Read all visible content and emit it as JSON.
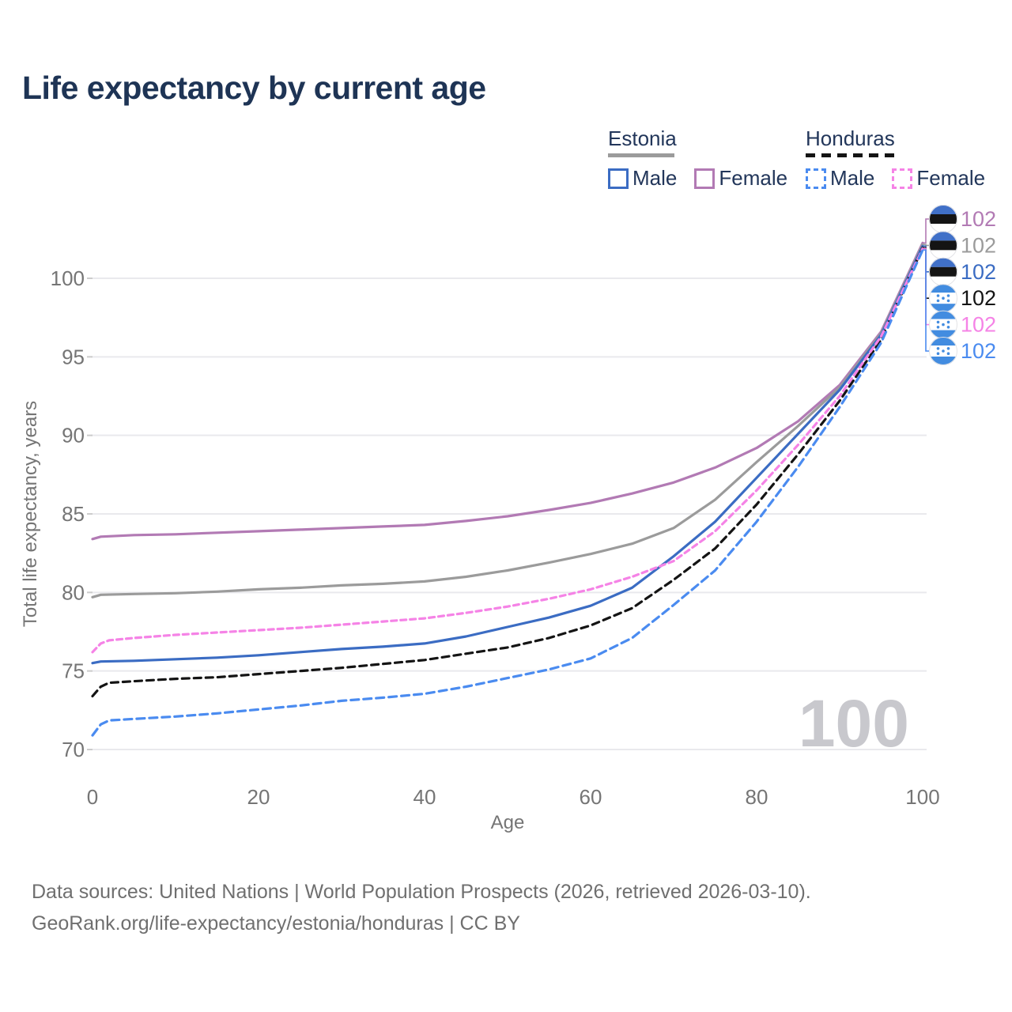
{
  "title": "Life expectancy by current age",
  "legend": {
    "groups": [
      {
        "name": "Estonia",
        "line_style": "solid",
        "underline_color": "#9b9b9b",
        "items": [
          {
            "label": "Male",
            "color": "#3b6cc3"
          },
          {
            "label": "Female",
            "color": "#b27ab4"
          }
        ]
      },
      {
        "name": "Honduras",
        "line_style": "dashed",
        "underline_color": "#141414",
        "items": [
          {
            "label": "Male",
            "color": "#4a8bf0"
          },
          {
            "label": "Female",
            "color": "#f583e6"
          }
        ]
      }
    ]
  },
  "chart_data": {
    "type": "line",
    "xlabel": "Age",
    "ylabel": "Total life expectancy, years",
    "xlim": [
      0,
      100
    ],
    "ylim": [
      69.5,
      103
    ],
    "xticks": [
      0,
      20,
      40,
      60,
      80,
      100
    ],
    "yticks": [
      70,
      75,
      80,
      85,
      90,
      95,
      100
    ],
    "grid": "horizontal",
    "hover_age_watermark": "100",
    "series": [
      {
        "name": "Estonia Female",
        "country": "Estonia",
        "sex": "Female",
        "color": "#b27ab4",
        "dash": null,
        "end_label": "102",
        "label_row": 0,
        "points": [
          [
            0,
            83.4
          ],
          [
            1,
            83.55
          ],
          [
            5,
            83.65
          ],
          [
            10,
            83.7
          ],
          [
            15,
            83.8
          ],
          [
            20,
            83.9
          ],
          [
            25,
            84.0
          ],
          [
            30,
            84.1
          ],
          [
            35,
            84.2
          ],
          [
            40,
            84.3
          ],
          [
            45,
            84.55
          ],
          [
            50,
            84.85
          ],
          [
            55,
            85.25
          ],
          [
            60,
            85.7
          ],
          [
            65,
            86.3
          ],
          [
            70,
            87.0
          ],
          [
            75,
            87.95
          ],
          [
            80,
            89.2
          ],
          [
            85,
            90.9
          ],
          [
            90,
            93.2
          ],
          [
            95,
            96.6
          ],
          [
            100,
            102.25
          ]
        ]
      },
      {
        "name": "Estonia (both sexes)",
        "country": "Estonia",
        "sex": "Total",
        "color": "#9b9b9b",
        "dash": null,
        "end_label": "102",
        "label_row": 1,
        "points": [
          [
            0,
            79.7
          ],
          [
            1,
            79.85
          ],
          [
            5,
            79.9
          ],
          [
            10,
            79.95
          ],
          [
            15,
            80.05
          ],
          [
            20,
            80.2
          ],
          [
            25,
            80.3
          ],
          [
            30,
            80.45
          ],
          [
            35,
            80.55
          ],
          [
            40,
            80.7
          ],
          [
            45,
            81.0
          ],
          [
            50,
            81.4
          ],
          [
            55,
            81.9
          ],
          [
            60,
            82.45
          ],
          [
            65,
            83.1
          ],
          [
            70,
            84.1
          ],
          [
            75,
            85.9
          ],
          [
            80,
            88.3
          ],
          [
            85,
            90.6
          ],
          [
            90,
            93.05
          ],
          [
            95,
            96.5
          ],
          [
            100,
            102.15
          ]
        ]
      },
      {
        "name": "Estonia Male",
        "country": "Estonia",
        "sex": "Male",
        "color": "#3b6cc3",
        "dash": null,
        "end_label": "102",
        "label_row": 2,
        "points": [
          [
            0,
            75.5
          ],
          [
            1,
            75.6
          ],
          [
            5,
            75.65
          ],
          [
            10,
            75.75
          ],
          [
            15,
            75.85
          ],
          [
            20,
            76.0
          ],
          [
            25,
            76.2
          ],
          [
            30,
            76.4
          ],
          [
            35,
            76.55
          ],
          [
            40,
            76.75
          ],
          [
            45,
            77.2
          ],
          [
            50,
            77.8
          ],
          [
            55,
            78.4
          ],
          [
            60,
            79.15
          ],
          [
            65,
            80.3
          ],
          [
            70,
            82.3
          ],
          [
            75,
            84.5
          ],
          [
            80,
            87.3
          ],
          [
            85,
            90.1
          ],
          [
            90,
            92.9
          ],
          [
            95,
            96.4
          ],
          [
            100,
            102.05
          ]
        ]
      },
      {
        "name": "Honduras (both sexes)",
        "country": "Honduras",
        "sex": "Total",
        "color": "#141414",
        "dash": "9 6",
        "end_label": "102",
        "label_row": 3,
        "points": [
          [
            0,
            73.4
          ],
          [
            1,
            74.0
          ],
          [
            2,
            74.25
          ],
          [
            5,
            74.35
          ],
          [
            10,
            74.5
          ],
          [
            15,
            74.6
          ],
          [
            20,
            74.8
          ],
          [
            25,
            75.0
          ],
          [
            30,
            75.2
          ],
          [
            35,
            75.45
          ],
          [
            40,
            75.7
          ],
          [
            45,
            76.1
          ],
          [
            50,
            76.5
          ],
          [
            55,
            77.1
          ],
          [
            60,
            77.9
          ],
          [
            65,
            79.0
          ],
          [
            70,
            80.8
          ],
          [
            75,
            82.8
          ],
          [
            80,
            85.6
          ],
          [
            85,
            88.8
          ],
          [
            90,
            92.2
          ],
          [
            95,
            96.1
          ],
          [
            100,
            101.95
          ]
        ]
      },
      {
        "name": "Honduras Female",
        "country": "Honduras",
        "sex": "Female",
        "color": "#f583e6",
        "dash": "7 5",
        "end_label": "102",
        "label_row": 4,
        "points": [
          [
            0,
            76.2
          ],
          [
            1,
            76.75
          ],
          [
            2,
            76.95
          ],
          [
            5,
            77.1
          ],
          [
            10,
            77.3
          ],
          [
            15,
            77.45
          ],
          [
            20,
            77.6
          ],
          [
            25,
            77.75
          ],
          [
            30,
            77.95
          ],
          [
            35,
            78.15
          ],
          [
            40,
            78.35
          ],
          [
            45,
            78.7
          ],
          [
            50,
            79.1
          ],
          [
            55,
            79.6
          ],
          [
            60,
            80.2
          ],
          [
            65,
            81.0
          ],
          [
            70,
            82.0
          ],
          [
            75,
            83.9
          ],
          [
            80,
            86.5
          ],
          [
            85,
            89.4
          ],
          [
            90,
            92.5
          ],
          [
            95,
            96.3
          ],
          [
            100,
            101.9
          ]
        ]
      },
      {
        "name": "Honduras Male",
        "country": "Honduras",
        "sex": "Male",
        "color": "#4a8bf0",
        "dash": "10 6",
        "end_label": "102",
        "label_row": 5,
        "points": [
          [
            0,
            70.9
          ],
          [
            1,
            71.6
          ],
          [
            2,
            71.85
          ],
          [
            5,
            71.95
          ],
          [
            10,
            72.1
          ],
          [
            15,
            72.3
          ],
          [
            20,
            72.55
          ],
          [
            25,
            72.8
          ],
          [
            30,
            73.1
          ],
          [
            35,
            73.3
          ],
          [
            40,
            73.55
          ],
          [
            45,
            74.0
          ],
          [
            50,
            74.55
          ],
          [
            55,
            75.1
          ],
          [
            60,
            75.8
          ],
          [
            65,
            77.1
          ],
          [
            70,
            79.2
          ],
          [
            75,
            81.4
          ],
          [
            80,
            84.5
          ],
          [
            85,
            88.0
          ],
          [
            90,
            91.8
          ],
          [
            95,
            95.9
          ],
          [
            100,
            101.8
          ]
        ]
      }
    ],
    "flag_colors": {
      "estonia_blue": "#4070c8",
      "estonia_black": "#141414",
      "estonia_white": "#ffffff",
      "honduras_blue": "#428ce0",
      "honduras_white": "#ffffff"
    }
  },
  "footer": {
    "line1": "Data sources: United Nations | World Population Prospects (2026, retrieved 2026-03-10).",
    "line2": "GeoRank.org/life-expectancy/estonia/honduras | CC BY"
  }
}
